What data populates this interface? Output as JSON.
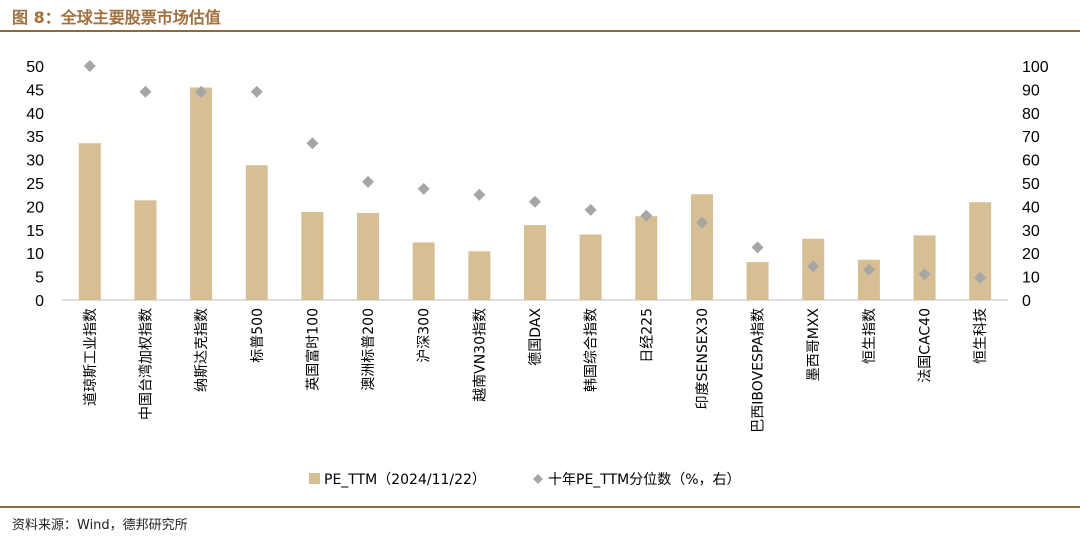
{
  "header": {
    "title": "图 8：全球主要股票市场估值"
  },
  "footer": {
    "source": "资料来源：Wind，德邦研究所"
  },
  "chart_data": {
    "type": "bar",
    "categories": [
      "道琼斯工业指数",
      "中国台湾加权指数",
      "纳斯达克指数",
      "标普500",
      "英国富时100",
      "澳洲标普200",
      "沪深300",
      "越南VN30指数",
      "德国DAX",
      "韩国综合指数",
      "日经225",
      "印度SENSEX30",
      "巴西IBOVESPA指数",
      "墨西哥MXX",
      "恒生指数",
      "法国CAC40",
      "恒生科技"
    ],
    "series": [
      {
        "name": "PE_TTM（2024/11/22）",
        "type": "bar",
        "axis": "left",
        "color": "#d6bf94",
        "values": [
          33.5,
          21.3,
          45.4,
          28.8,
          18.8,
          18.6,
          12.3,
          10.4,
          16.0,
          14.0,
          17.9,
          22.6,
          8.1,
          13.1,
          8.6,
          13.8,
          20.9
        ]
      },
      {
        "name": "十年PE_TTM分位数（%，右）",
        "type": "scatter",
        "axis": "right",
        "color": "#a6a6a6",
        "marker": "diamond",
        "values": [
          100,
          89,
          89,
          89,
          67,
          50.5,
          47.5,
          45,
          42,
          38.5,
          36,
          33,
          22.5,
          14.5,
          13,
          11,
          9.5
        ]
      }
    ],
    "ylim_left": [
      0,
      50
    ],
    "yticks_left": [
      "0",
      "5",
      "10",
      "15",
      "20",
      "25",
      "30",
      "35",
      "40",
      "45",
      "50"
    ],
    "ylim_right": [
      0,
      100
    ],
    "yticks_right": [
      "0",
      "10",
      "20",
      "30",
      "40",
      "50",
      "60",
      "70",
      "80",
      "90",
      "100"
    ],
    "grid": false,
    "legend_position": "bottom"
  }
}
